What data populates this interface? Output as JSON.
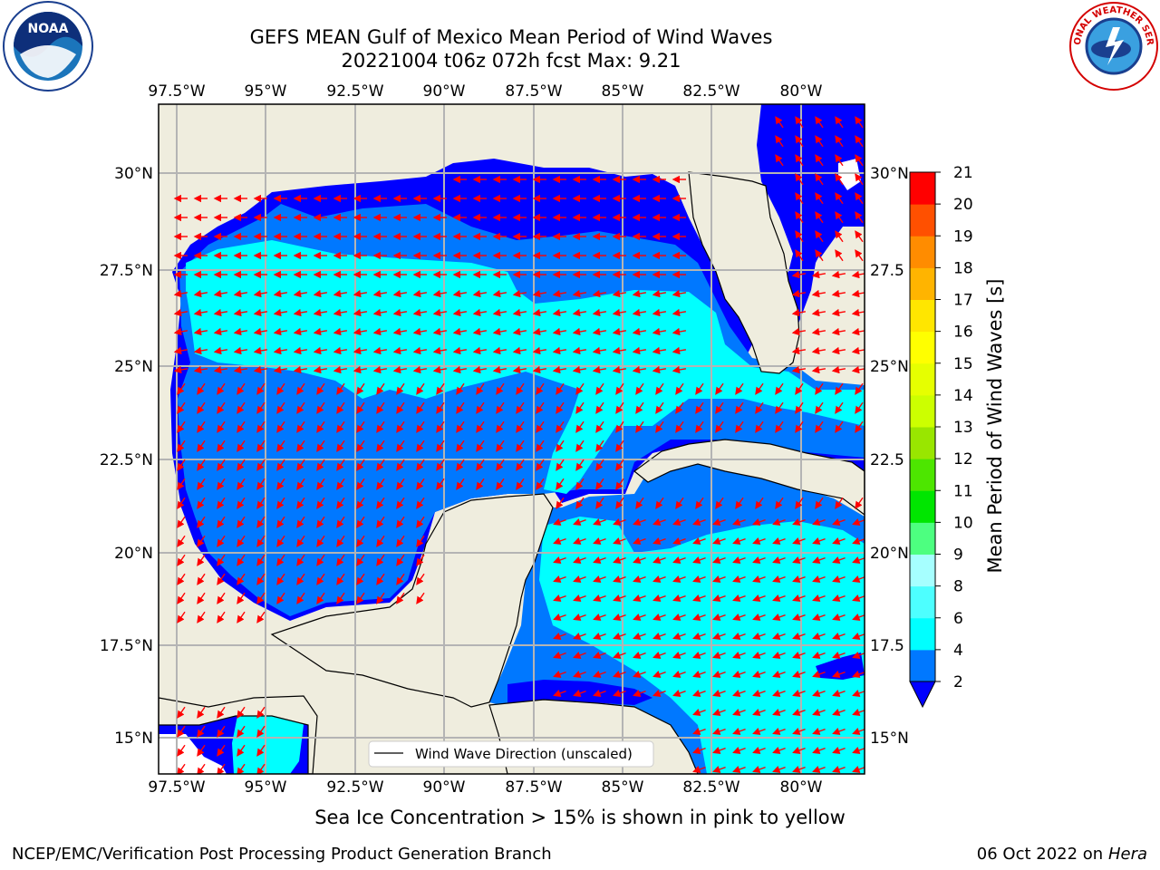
{
  "header": {
    "title_line1": "GEFS MEAN Gulf of Mexico Mean Period of Wind Waves",
    "title_line2": "20221004 t06z 072h fcst   Max: 9.21"
  },
  "logos": {
    "noaa": "NOAA",
    "nws": "NATIONAL WEATHER SERVICE"
  },
  "map": {
    "lon_ticks": [
      "97.5°W",
      "95°W",
      "92.5°W",
      "90°W",
      "87.5°W",
      "85°W",
      "82.5°W",
      "80°W"
    ],
    "lat_ticks": [
      "30°N",
      "27.5°N",
      "25°N",
      "22.5°N",
      "20°N",
      "17.5°N",
      "15°N"
    ],
    "right_lat_ticks": [
      "30°N",
      "27.5",
      "25°N",
      "22.5",
      "20°N",
      "17.5",
      "15°N"
    ],
    "legend_label": "Wind Wave Direction (unscaled)",
    "colors": {
      "land": "#efedde",
      "band_2_4": "#0000ff",
      "band_4_6": "#0078ff",
      "band_6_8": "#00ffff",
      "band_8_9": "#4dffff",
      "arrow": "#ff0000",
      "grid": "#b4b4b4"
    }
  },
  "colorbar": {
    "label": "Mean Period of Wind Waves [s]",
    "ticks": [
      "2",
      "4",
      "6",
      "8",
      "9",
      "10",
      "11",
      "12",
      "13",
      "14",
      "15",
      "16",
      "17",
      "18",
      "19",
      "20",
      "21"
    ],
    "colors": [
      "#0078ff",
      "#00ffff",
      "#4dffff",
      "#a6ffff",
      "#4dff80",
      "#00e600",
      "#4de600",
      "#99e600",
      "#ccff00",
      "#e6ff00",
      "#ffff00",
      "#ffe600",
      "#ffb400",
      "#ff8c00",
      "#ff5000",
      "#ff0000"
    ],
    "extend_color": "#0000ff"
  },
  "footer": {
    "note": "Sea Ice Concentration > 15% is shown in pink to yellow",
    "credit": "NCEP/EMC/Verification Post Processing Product Generation Branch",
    "date": "06 Oct 2022 on",
    "host": "Hera"
  }
}
